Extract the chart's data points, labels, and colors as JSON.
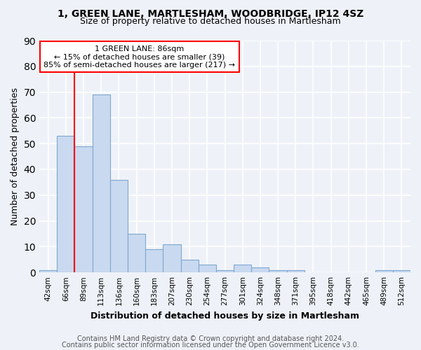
{
  "title1": "1, GREEN LANE, MARTLESHAM, WOODBRIDGE, IP12 4SZ",
  "title2": "Size of property relative to detached houses in Martlesham",
  "xlabel": "Distribution of detached houses by size in Martlesham",
  "ylabel": "Number of detached properties",
  "categories": [
    "42sqm",
    "66sqm",
    "89sqm",
    "113sqm",
    "136sqm",
    "160sqm",
    "183sqm",
    "207sqm",
    "230sqm",
    "254sqm",
    "277sqm",
    "301sqm",
    "324sqm",
    "348sqm",
    "371sqm",
    "395sqm",
    "418sqm",
    "442sqm",
    "465sqm",
    "489sqm",
    "512sqm"
  ],
  "values": [
    1,
    53,
    49,
    69,
    36,
    15,
    9,
    11,
    5,
    3,
    1,
    3,
    2,
    1,
    1,
    0,
    0,
    0,
    0,
    1,
    1
  ],
  "bar_color": "#c9d9f0",
  "bar_edge_color": "#7fa8d0",
  "annotation_text": "1 GREEN LANE: 86sqm\n← 15% of detached houses are smaller (39)\n85% of semi-detached houses are larger (217) →",
  "ylim": [
    0,
    90
  ],
  "yticks": [
    0,
    10,
    20,
    30,
    40,
    50,
    60,
    70,
    80,
    90
  ],
  "footer1": "Contains HM Land Registry data © Crown copyright and database right 2024.",
  "footer2": "Contains public sector information licensed under the Open Government Licence v3.0.",
  "bg_color": "#eef2f8",
  "grid_color": "white"
}
